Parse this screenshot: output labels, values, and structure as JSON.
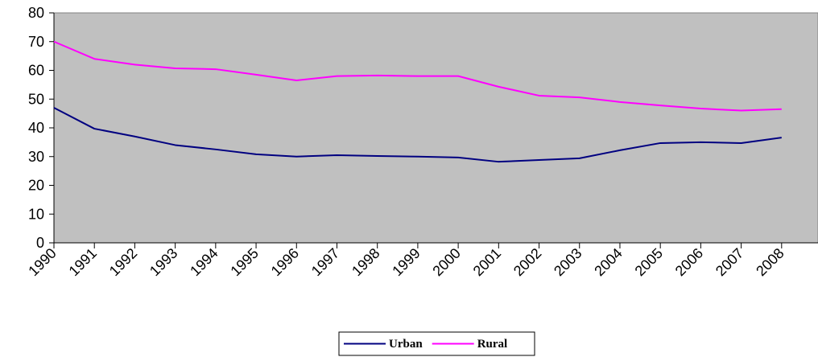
{
  "chart_data": {
    "type": "line",
    "x": [
      1990,
      1991,
      1992,
      1993,
      1994,
      1995,
      1996,
      1997,
      1998,
      1999,
      2000,
      2001,
      2002,
      2003,
      2004,
      2005,
      2006,
      2007,
      2008
    ],
    "series": [
      {
        "name": "Urban",
        "color": "#000080",
        "values": [
          47,
          39.7,
          37,
          34,
          32.5,
          30.8,
          30,
          30.5,
          30.2,
          30,
          29.7,
          28.2,
          28.8,
          29.4,
          32.2,
          34.7,
          35,
          34.7,
          36.6
        ]
      },
      {
        "name": "Rural",
        "color": "#ff00ff",
        "values": [
          70,
          64,
          62,
          60.7,
          60.4,
          58.5,
          56.5,
          58,
          58.2,
          58,
          58,
          54.3,
          51.2,
          50.6,
          49,
          47.8,
          46.7,
          46,
          46.5
        ]
      }
    ],
    "xlim": [
      1990,
      2008.9
    ],
    "ylim": [
      0,
      80
    ],
    "yticks": [
      0,
      10,
      20,
      30,
      40,
      50,
      60,
      70,
      80
    ],
    "plot_background": "#c0c0c0",
    "legend": "bottom"
  }
}
